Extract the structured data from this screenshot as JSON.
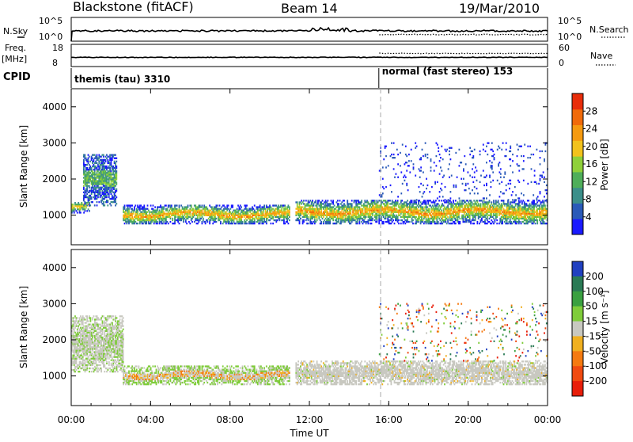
{
  "header": {
    "station": "Blackstone (fitACF)",
    "beam": "Beam 14",
    "date": "19/Mar/2010"
  },
  "top_panels": {
    "nsky_label": "N.Sky",
    "nsky_ticks": [
      "10^5",
      "10^0"
    ],
    "nsearch_label": "N.Search",
    "nsearch_ticks": [
      "10^5",
      "10^0"
    ],
    "freq_label_line1": "Freq.",
    "freq_label_line2": "[MHz]",
    "freq_ticks": [
      "18",
      "8"
    ],
    "nave_label": "Nave",
    "nave_ticks": [
      "60",
      "0"
    ],
    "cpid_label": "CPID",
    "cpid_segments": [
      {
        "label": "themis (tau) 3310",
        "start_hour": 0,
        "end_hour": 15.5
      },
      {
        "label": "normal (fast stereo) 153",
        "start_hour": 15.5,
        "end_hour": 24
      }
    ]
  },
  "chart_data": [
    {
      "type": "heatmap",
      "name": "power",
      "ylabel": "Slant Range [km]",
      "xlabel": "",
      "xlim_hours": [
        0,
        24
      ],
      "ylim": [
        180,
        4500
      ],
      "yticks": [
        1000,
        2000,
        3000,
        4000
      ],
      "colorbar": {
        "label": "Power [dB]",
        "ticks": [
          "4",
          "8",
          "12",
          "16",
          "20",
          "24",
          "28"
        ],
        "tick_values": [
          4,
          8,
          12,
          16,
          20,
          24,
          28
        ],
        "range": [
          0,
          32
        ],
        "colors": [
          "#1a1aff",
          "#2a5ab8",
          "#3c8f8a",
          "#4fae5a",
          "#8fd03a",
          "#f2c21c",
          "#f59a10",
          "#f06a0a",
          "#e82d0a"
        ]
      },
      "scatter_regions": [
        {
          "start_hour": 0.0,
          "end_hour": 0.9,
          "range_min": 1050,
          "range_max": 1350,
          "level": "mid"
        },
        {
          "start_hour": 0.6,
          "end_hour": 2.3,
          "range_min": 1250,
          "range_max": 2650,
          "level": "low"
        },
        {
          "start_hour": 2.6,
          "end_hour": 11.0,
          "range_min": 750,
          "range_max": 1250,
          "level": "high"
        },
        {
          "start_hour": 11.3,
          "end_hour": 24.0,
          "range_min": 750,
          "range_max": 1400,
          "level": "high"
        },
        {
          "start_hour": 15.5,
          "end_hour": 24.0,
          "range_min": 1400,
          "range_max": 3000,
          "level": "sparse"
        }
      ]
    },
    {
      "type": "heatmap",
      "name": "velocity",
      "ylabel": "Slant Range [km]",
      "xlabel": "Time UT",
      "xlim_hours": [
        0,
        24
      ],
      "xticks": [
        "00:00",
        "04:00",
        "08:00",
        "12:00",
        "16:00",
        "20:00",
        "00:00"
      ],
      "xtick_hours": [
        0,
        4,
        8,
        12,
        16,
        20,
        24
      ],
      "ylim": [
        180,
        4500
      ],
      "yticks": [
        1000,
        2000,
        3000,
        4000
      ],
      "colorbar": {
        "label": "Velocity [m s⁻¹]",
        "ticks": [
          "200",
          "100",
          "50",
          "15",
          "-15",
          "-50",
          "-100",
          "-200"
        ],
        "tick_values": [
          200,
          100,
          50,
          15,
          -15,
          -50,
          -100,
          -200
        ],
        "range": [
          -250,
          250
        ],
        "colors": [
          "#2040c0",
          "#2a7a55",
          "#3aa040",
          "#7fcc3a",
          "#c8c8c0",
          "#f0b020",
          "#f57a10",
          "#f04a10",
          "#e81e0a"
        ]
      },
      "scatter_regions": [
        {
          "start_hour": 0.0,
          "end_hour": 2.6,
          "range_min": 1100,
          "range_max": 2650,
          "level": "gray-green"
        },
        {
          "start_hour": 2.6,
          "end_hour": 11.0,
          "range_min": 750,
          "range_max": 1250,
          "level": "gray-green-orange"
        },
        {
          "start_hour": 11.3,
          "end_hour": 24.0,
          "range_min": 750,
          "range_max": 1400,
          "level": "gray"
        },
        {
          "start_hour": 15.5,
          "end_hour": 24.0,
          "range_min": 1400,
          "range_max": 3000,
          "level": "sparse"
        }
      ]
    }
  ]
}
